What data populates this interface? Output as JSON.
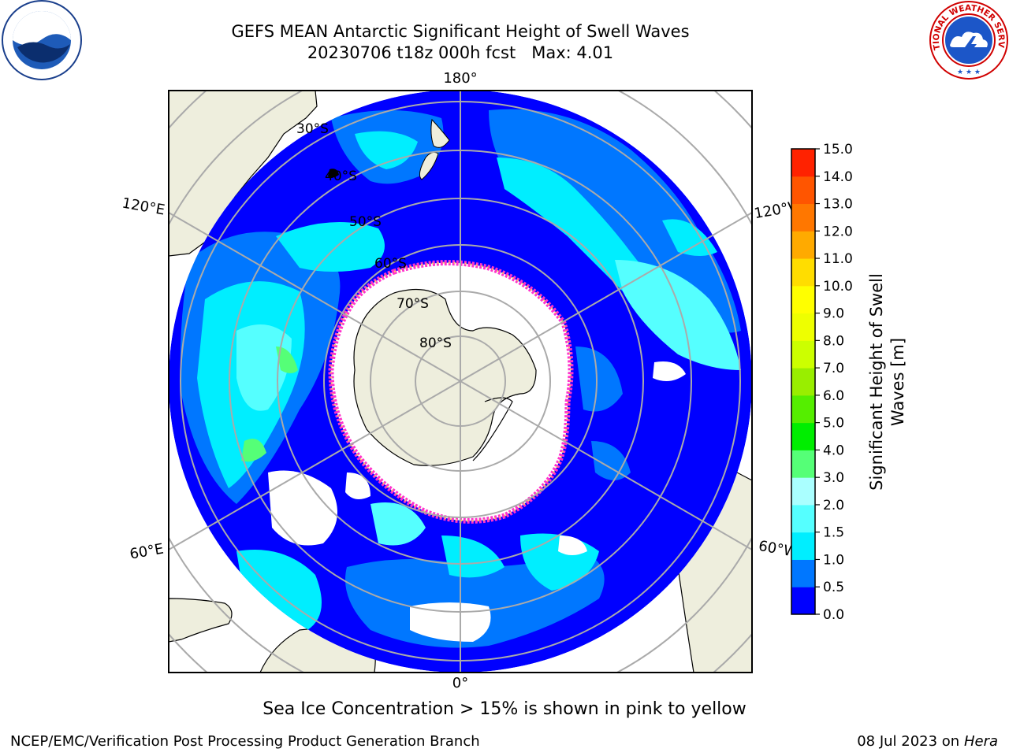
{
  "header": {
    "title_line1": "GEFS MEAN Antarctic Significant Height of Swell Waves",
    "title_line2": "20230706 t18z 000h fcst   Max: 4.01"
  },
  "logos": {
    "left": {
      "icon": "noaa-logo",
      "text": "NOAA"
    },
    "right": {
      "icon": "national-weather-service-logo",
      "text": "NATIONAL WEATHER SERVICE"
    }
  },
  "map": {
    "projection": "south-polar-stereographic",
    "longitude_labels": [
      {
        "key": "top",
        "text": "180°"
      },
      {
        "key": "bottom",
        "text": "0°"
      },
      {
        "key": "upper-left",
        "text": "120°E"
      },
      {
        "key": "lower-left",
        "text": "60°E"
      },
      {
        "key": "upper-right",
        "text": "120°W"
      },
      {
        "key": "lower-right",
        "text": "60°W"
      }
    ],
    "latitude_labels": [
      {
        "key": "30",
        "text": "30°S"
      },
      {
        "key": "40",
        "text": "40°S"
      },
      {
        "key": "50",
        "text": "50°S"
      },
      {
        "key": "60",
        "text": "60°S"
      },
      {
        "key": "70",
        "text": "70°S"
      },
      {
        "key": "80",
        "text": "80°S"
      }
    ],
    "colors": {
      "land": "#eeeedd",
      "ocean_low": "#0000ff",
      "ice": "#ffffff",
      "ice_edge": "#ff33cc",
      "grid": "#aaaaaa"
    }
  },
  "colorbar": {
    "label_line1": "Significant Height of Swell",
    "label_line2": "Waves [m]",
    "ticks": [
      "0.0",
      "0.5",
      "1.0",
      "1.5",
      "2.0",
      "3.0",
      "4.0",
      "5.0",
      "6.0",
      "7.0",
      "8.0",
      "9.0",
      "10.0",
      "11.0",
      "12.0",
      "13.0",
      "14.0",
      "15.0"
    ],
    "colors": [
      "#0000ff",
      "#0077ff",
      "#00eeff",
      "#55ffff",
      "#aaffff",
      "#55ff77",
      "#00ee00",
      "#55ee00",
      "#99ee00",
      "#ccff00",
      "#eeff00",
      "#ffff00",
      "#ffdd00",
      "#ffaa00",
      "#ff7700",
      "#ff5500",
      "#ff2200",
      "#ff0000"
    ]
  },
  "chart_data": {
    "type": "heatmap",
    "title": "GEFS MEAN Antarctic Significant Height of Swell Waves",
    "subtitle": "20230706 t18z 000h fcst   Max: 4.01",
    "colorbar_label": "Significant Height of Swell Waves [m]",
    "colorbar_levels": [
      0.0,
      0.5,
      1.0,
      1.5,
      2.0,
      3.0,
      4.0,
      5.0,
      6.0,
      7.0,
      8.0,
      9.0,
      10.0,
      11.0,
      12.0,
      13.0,
      14.0,
      15.0
    ],
    "max_value": 4.01,
    "note": "Sea Ice Concentration > 15% is shown in pink to yellow"
  },
  "footer": {
    "note": "Sea Ice Concentration > 15% is shown in pink to yellow",
    "left": "NCEP/EMC/Verification Post Processing Product Generation Branch",
    "right_date": "08 Jul 2023 on ",
    "right_host": "Hera"
  }
}
